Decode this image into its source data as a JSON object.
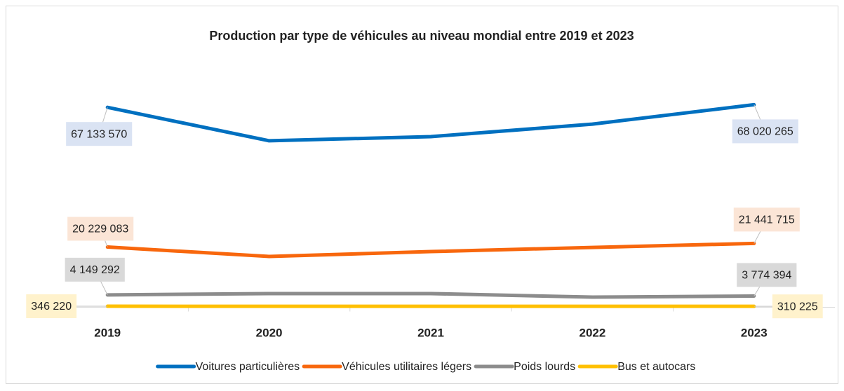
{
  "chart_data": {
    "type": "line",
    "title": "Production par type de véhicules au niveau mondial entre 2019 et 2023",
    "categories": [
      "2019",
      "2020",
      "2021",
      "2022",
      "2023"
    ],
    "ylim": [
      0,
      80000000
    ],
    "legend": "bottom",
    "series": [
      {
        "name": "Voitures particulières",
        "color": "#0070c0",
        "label_bg": "#dae3f3",
        "values": [
          67133570,
          55900000,
          57300000,
          61500000,
          68020265
        ],
        "value_labels": [
          "67 133 570",
          null,
          null,
          null,
          "68 020 265"
        ]
      },
      {
        "name": "Véhicules utilitaires légers",
        "color": "#f8670d",
        "label_bg": "#fbe5d6",
        "values": [
          20229083,
          17060000,
          18700000,
          20100000,
          21441715
        ],
        "value_labels": [
          "20 229 083",
          null,
          null,
          null,
          "21 441 715"
        ]
      },
      {
        "name": "Poids lourds",
        "color": "#8c8c8c",
        "label_bg": "#d9d9d9",
        "values": [
          4149292,
          4600000,
          4600000,
          3400000,
          3774394
        ],
        "value_labels": [
          "4 149 292",
          null,
          null,
          null,
          "3 774 394"
        ]
      },
      {
        "name": "Bus et autocars",
        "color": "#ffc000",
        "label_bg": "#fff2cc",
        "values": [
          346220,
          320000,
          320000,
          310000,
          310225
        ],
        "value_labels": [
          "346 220",
          null,
          null,
          null,
          "310 225"
        ]
      }
    ]
  }
}
